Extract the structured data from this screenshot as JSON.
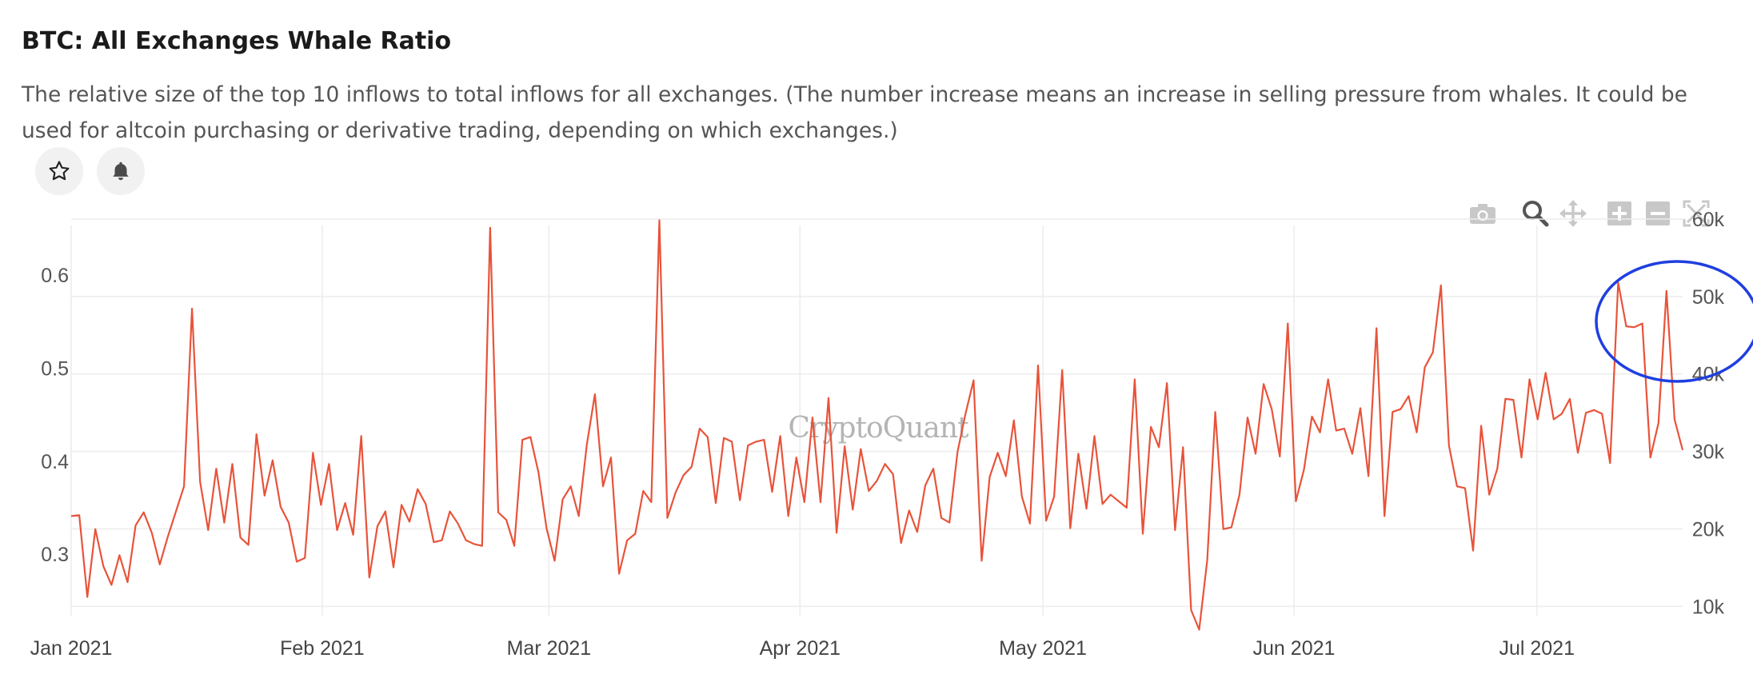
{
  "header": {
    "title": "BTC: All Exchanges Whale Ratio",
    "description": "The relative size of the top 10 inflows to total inflows for all exchanges. (The number increase means an increase in selling pressure from whales. It could be used for altcoin purchasing or derivative trading, depending on which exchanges.)"
  },
  "actions": {
    "favorite_icon": "star-icon",
    "alert_icon": "bell-icon"
  },
  "toolbar": [
    "camera-icon",
    "zoom-icon",
    "pan-icon",
    "zoom-in-icon",
    "zoom-out-icon",
    "autoscale-icon"
  ],
  "watermark": "CryptoQuant",
  "chart_data": {
    "type": "line",
    "x_start": "2021-01-01",
    "x_end": "2021-07-19",
    "x_ticks": [
      "Jan 2021",
      "Feb 2021",
      "Mar 2021",
      "Apr 2021",
      "May 2021",
      "Jun 2021",
      "Jul 2021"
    ],
    "y_ticks": [
      "0.3",
      "0.4",
      "0.5",
      "0.6"
    ],
    "y2_ticks": [
      "10k",
      "20k",
      "30k",
      "40k",
      "50k",
      "60k"
    ],
    "ylim": [
      0.234,
      0.662
    ],
    "y2lim": [
      8800,
      60200
    ],
    "grid": true,
    "line_color": "#e8533a",
    "annotation_color": "#1f3fe0",
    "series": [
      {
        "values": [
          0.341,
          0.342,
          0.254,
          0.327,
          0.287,
          0.267,
          0.299,
          0.27,
          0.331,
          0.345,
          0.323,
          0.289,
          0.319,
          0.346,
          0.373,
          0.564,
          0.378,
          0.326,
          0.392,
          0.334,
          0.397,
          0.318,
          0.31,
          0.429,
          0.363,
          0.401,
          0.351,
          0.334,
          0.292,
          0.296,
          0.409,
          0.353,
          0.397,
          0.326,
          0.355,
          0.321,
          0.427,
          0.275,
          0.33,
          0.346,
          0.286,
          0.353,
          0.335,
          0.37,
          0.354,
          0.313,
          0.315,
          0.346,
          0.333,
          0.315,
          0.311,
          0.309,
          0.651,
          0.345,
          0.337,
          0.309,
          0.423,
          0.426,
          0.388,
          0.328,
          0.293,
          0.359,
          0.373,
          0.341,
          0.418,
          0.472,
          0.373,
          0.404,
          0.279,
          0.315,
          0.322,
          0.368,
          0.356,
          0.659,
          0.339,
          0.366,
          0.385,
          0.394,
          0.435,
          0.426,
          0.355,
          0.425,
          0.421,
          0.358,
          0.417,
          0.421,
          0.423,
          0.367,
          0.427,
          0.341,
          0.404,
          0.356,
          0.447,
          0.356,
          0.468,
          0.323,
          0.416,
          0.348,
          0.413,
          0.368,
          0.379,
          0.397,
          0.386,
          0.312,
          0.347,
          0.324,
          0.374,
          0.392,
          0.339,
          0.334,
          0.41,
          0.451,
          0.487,
          0.293,
          0.383,
          0.409,
          0.384,
          0.444,
          0.362,
          0.333,
          0.503,
          0.336,
          0.362,
          0.498,
          0.328,
          0.408,
          0.349,
          0.427,
          0.354,
          0.364,
          0.357,
          0.35,
          0.488,
          0.322,
          0.437,
          0.415,
          0.484,
          0.326,
          0.415,
          0.24,
          0.219,
          0.294,
          0.453,
          0.327,
          0.329,
          0.364,
          0.447,
          0.408,
          0.483,
          0.456,
          0.405,
          0.548,
          0.357,
          0.391,
          0.448,
          0.431,
          0.488,
          0.433,
          0.435,
          0.408,
          0.457,
          0.384,
          0.543,
          0.341,
          0.453,
          0.456,
          0.47,
          0.431,
          0.501,
          0.517,
          0.589,
          0.417,
          0.373,
          0.371,
          0.304,
          0.438,
          0.364,
          0.392,
          0.467,
          0.466,
          0.404,
          0.488,
          0.445,
          0.495,
          0.445,
          0.451,
          0.467,
          0.409,
          0.452,
          0.455,
          0.451,
          0.398,
          0.592,
          0.545,
          0.544,
          0.548,
          0.404,
          0.441,
          0.583,
          0.445,
          0.412
        ]
      }
    ],
    "annotation": "ellipse highlighting the mid-July 2021 spikes"
  }
}
